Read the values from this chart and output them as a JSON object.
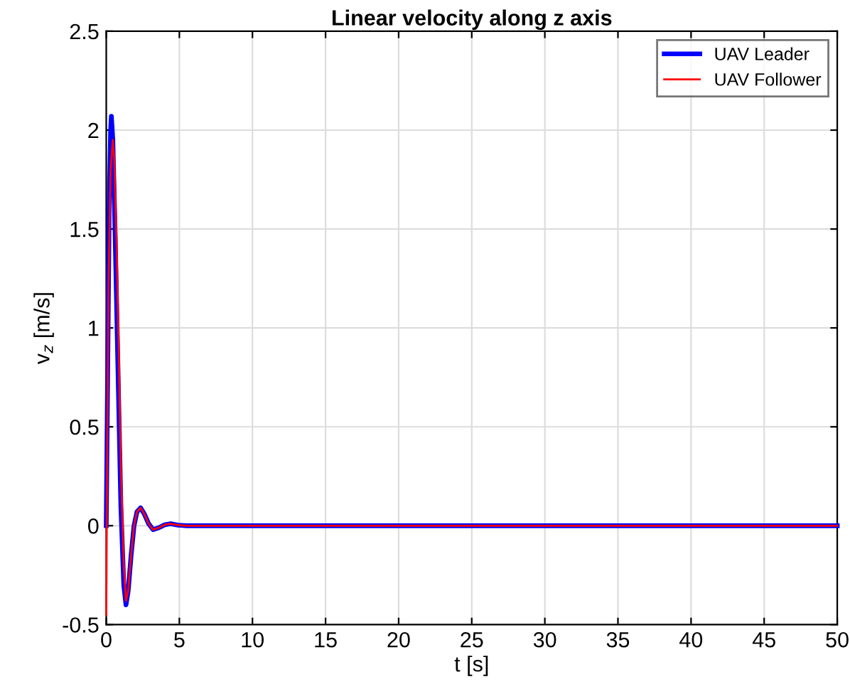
{
  "chart_data": {
    "type": "line",
    "title": "Linear velocity along z axis",
    "xlabel": "t [s]",
    "ylabel": "v$_{z}$ [m/s]",
    "xlim": [
      0,
      50
    ],
    "ylim": [
      -0.5,
      2.5
    ],
    "xticks": [
      0,
      5,
      10,
      15,
      20,
      25,
      30,
      35,
      40,
      45,
      50
    ],
    "yticks": [
      -0.5,
      0,
      0.5,
      1,
      1.5,
      2,
      2.5
    ],
    "grid": true,
    "legend": "top right",
    "series": [
      {
        "name": "UAV Leader",
        "color": "#0000ff",
        "x": [
          0,
          0.1,
          0.2,
          0.3,
          0.35,
          0.45,
          0.6,
          0.8,
          1.0,
          1.2,
          1.35,
          1.5,
          1.7,
          1.9,
          2.1,
          2.35,
          2.6,
          2.9,
          3.2,
          3.6,
          4.0,
          4.4,
          4.9,
          5.5,
          7,
          10,
          20,
          30,
          40,
          50
        ],
        "values": [
          0,
          0.8,
          1.6,
          2.0,
          2.07,
          1.95,
          1.5,
          0.8,
          0.1,
          -0.3,
          -0.4,
          -0.33,
          -0.15,
          0.0,
          0.07,
          0.09,
          0.06,
          0.01,
          -0.02,
          -0.01,
          0.005,
          0.01,
          0.003,
          0,
          0,
          0,
          0,
          0,
          0,
          0
        ]
      },
      {
        "name": "UAV Follower",
        "color": "#ff0000",
        "x": [
          0,
          0.05,
          0.15,
          0.3,
          0.45,
          0.55,
          0.7,
          0.85,
          1.0,
          1.2,
          1.35,
          1.5,
          1.7,
          1.9,
          2.1,
          2.35,
          2.6,
          2.9,
          3.2,
          3.6,
          4.0,
          4.4,
          4.9,
          5.5,
          7,
          10,
          20,
          30,
          40,
          50
        ],
        "values": [
          -0.45,
          0.2,
          1.2,
          1.8,
          1.95,
          1.85,
          1.45,
          0.9,
          0.3,
          -0.2,
          -0.38,
          -0.33,
          -0.15,
          0.0,
          0.07,
          0.09,
          0.06,
          0.01,
          -0.02,
          -0.01,
          0.005,
          0.01,
          0.003,
          0,
          0,
          0,
          0,
          0,
          0,
          0
        ]
      }
    ]
  }
}
